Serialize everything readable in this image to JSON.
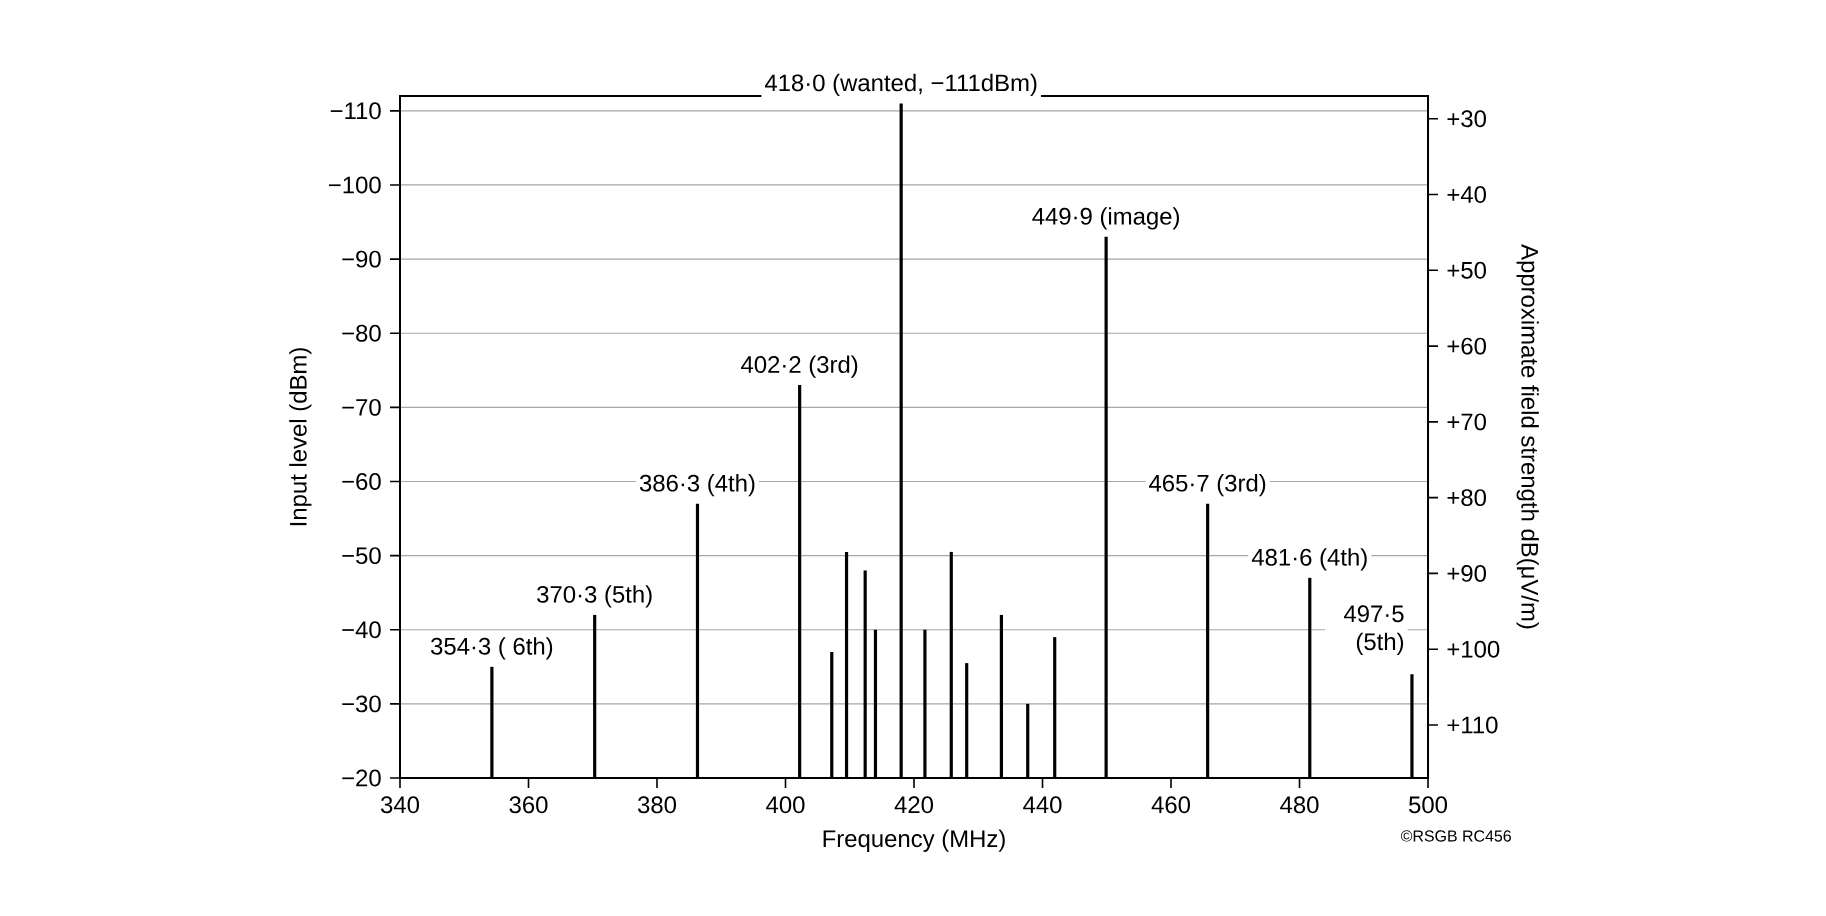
{
  "chart_data": {
    "type": "bar",
    "xlabel": "Frequency (MHz)",
    "ylabel": "Input level (dBm)",
    "y2label": "Approximate field strength dB(μV/m)",
    "x": [
      354.3,
      370.3,
      386.3,
      402.2,
      407.2,
      409.5,
      412.4,
      414.0,
      418.0,
      421.7,
      425.8,
      428.2,
      433.6,
      437.7,
      441.9,
      449.9,
      465.7,
      481.6,
      497.5
    ],
    "values": [
      -35,
      -42,
      -57,
      -73,
      -37,
      -50.5,
      -48,
      -40,
      -111,
      -40,
      -50.5,
      -35.5,
      -42,
      -30,
      -39,
      -93,
      -57,
      -47,
      -34
    ],
    "color": "#000000",
    "xlim": [
      340,
      500
    ],
    "xticks": [
      340,
      360,
      380,
      400,
      420,
      440,
      460,
      480,
      500
    ],
    "ylim": [
      -20,
      -112
    ],
    "yticks": [
      {
        "value": -20,
        "label": "−20"
      },
      {
        "value": -30,
        "label": "−30"
      },
      {
        "value": -40,
        "label": "−40"
      },
      {
        "value": -50,
        "label": "−50"
      },
      {
        "value": -60,
        "label": "−60"
      },
      {
        "value": -70,
        "label": "−70"
      },
      {
        "value": -80,
        "label": "−80"
      },
      {
        "value": -90,
        "label": "−90"
      },
      {
        "value": -100,
        "label": "−100"
      },
      {
        "value": -110,
        "label": "−110"
      }
    ],
    "y2lim": [
      117,
      27
    ],
    "y2ticks": [
      {
        "value": 30,
        "label": "+30"
      },
      {
        "value": 40,
        "label": "+40"
      },
      {
        "value": 50,
        "label": "+50"
      },
      {
        "value": 60,
        "label": "+60"
      },
      {
        "value": 70,
        "label": "+70"
      },
      {
        "value": 80,
        "label": "+80"
      },
      {
        "value": 90,
        "label": "+90"
      },
      {
        "value": 100,
        "label": "+100"
      },
      {
        "value": 110,
        "label": "+110"
      }
    ],
    "grid": "y",
    "annotations": [
      {
        "text": "354·3 ( 6th)",
        "x": 354.3,
        "y": -35
      },
      {
        "text": "370·3 (5th)",
        "x": 370.3,
        "y": -42
      },
      {
        "text": "386·3 (4th)",
        "x": 386.3,
        "y": -57
      },
      {
        "text": "402·2 (3rd)",
        "x": 402.2,
        "y": -73
      },
      {
        "text": "418·0 (wanted, −111dBm)",
        "x": 418.0,
        "y": -111
      },
      {
        "text": "449·9 (image)",
        "x": 449.9,
        "y": -93
      },
      {
        "text": "465·7 (3rd)",
        "x": 465.7,
        "y": -57
      },
      {
        "text": "481·6 (4th)",
        "x": 481.6,
        "y": -47
      },
      {
        "text": "497·5 (5th)",
        "x": 497.5,
        "y": -34
      },
      "©RSGB RC456"
    ]
  }
}
